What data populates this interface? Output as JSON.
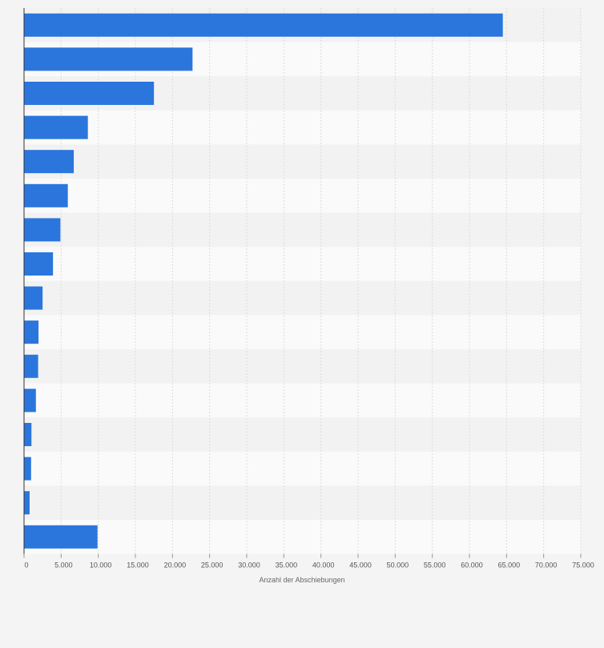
{
  "chart_data": {
    "type": "bar",
    "orientation": "horizontal",
    "categories": [
      "",
      "",
      "",
      "",
      "",
      "",
      "",
      "",
      "",
      "",
      "",
      "",
      "",
      "",
      "",
      ""
    ],
    "values": [
      64500,
      22700,
      17500,
      8600,
      6700,
      5900,
      4900,
      3900,
      2500,
      1950,
      1900,
      1600,
      1000,
      950,
      750,
      9900
    ],
    "xlabel": "Anzahl der Abschiebungen",
    "ylabel": "",
    "xlim": [
      0,
      75000
    ],
    "ticks": [
      0,
      5000,
      10000,
      15000,
      20000,
      25000,
      30000,
      35000,
      40000,
      45000,
      50000,
      55000,
      60000,
      65000,
      70000,
      75000
    ],
    "tick_labels": [
      "0",
      "5.000",
      "10.000",
      "15.000",
      "20.000",
      "25.000",
      "30.000",
      "35.000",
      "40.000",
      "45.000",
      "50.000",
      "55.000",
      "60.000",
      "65.000",
      "70.000",
      "75.000"
    ],
    "grid": true,
    "legend": false,
    "bar_color": "#2a76dd",
    "band_colors": [
      "#f2f2f2",
      "#fafafa"
    ]
  }
}
